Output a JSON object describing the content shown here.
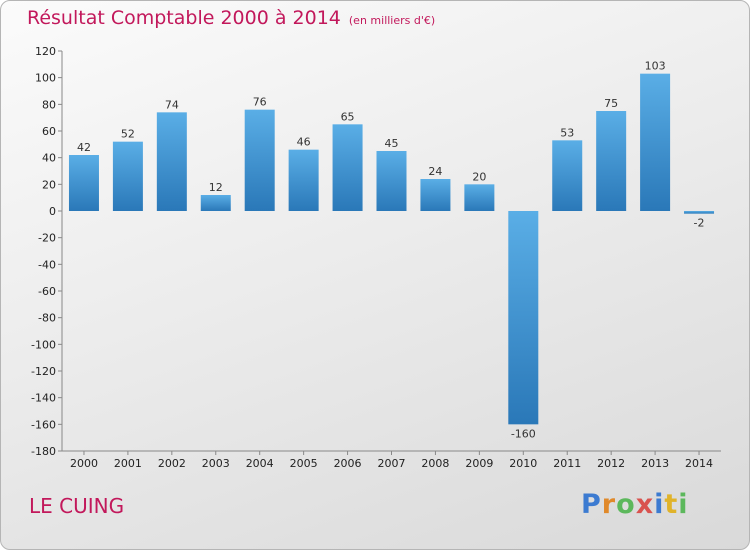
{
  "header": {
    "title": "Résultat Comptable 2000 à 2014",
    "subtitle": "(en milliers d'€)"
  },
  "commune": "LE CUING",
  "logo": {
    "text": "Proxiti"
  },
  "chart_data": {
    "type": "bar",
    "categories": [
      "2000",
      "2001",
      "2002",
      "2003",
      "2004",
      "2005",
      "2006",
      "2007",
      "2008",
      "2009",
      "2010",
      "2011",
      "2012",
      "2013",
      "2014"
    ],
    "values": [
      42,
      52,
      74,
      12,
      76,
      46,
      65,
      45,
      24,
      20,
      -160,
      53,
      75,
      103,
      -2
    ],
    "data_labels": [
      "42",
      "52",
      "74",
      "12",
      "76",
      "46",
      "65",
      "45",
      "24",
      "20",
      "-160",
      "53",
      "75",
      "103",
      "-2"
    ],
    "ylim": [
      -180,
      120
    ],
    "yticks": [
      120,
      100,
      80,
      60,
      40,
      20,
      0,
      -20,
      -40,
      -60,
      -80,
      -100,
      -120,
      -140,
      -160,
      -180
    ],
    "grid": false,
    "colors": {
      "bar_light": "#5aaee6",
      "bar_dark": "#2a78b8"
    }
  }
}
